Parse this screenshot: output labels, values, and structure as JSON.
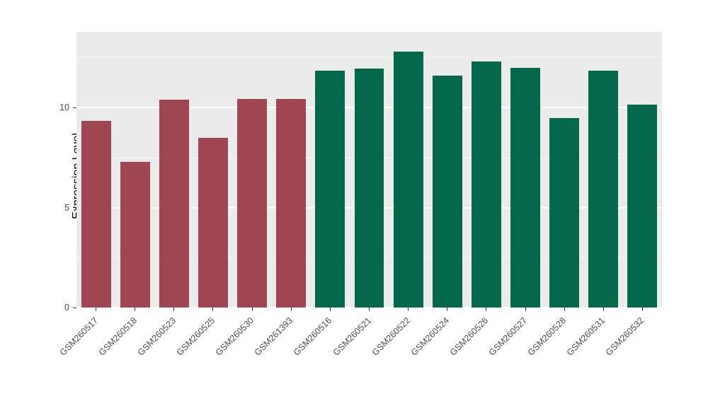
{
  "chart_data": {
    "type": "bar",
    "title": "",
    "xlabel": "",
    "ylabel": "Expression Level",
    "ylim": [
      0,
      13.8
    ],
    "yticks": [
      0,
      5,
      10
    ],
    "yticks_minor": [
      2.5,
      7.5,
      12.5
    ],
    "grid": true,
    "legend_position": "none",
    "panel_background": "#EBEBEB",
    "gridline_color": "#FFFFFF",
    "categories": [
      "GSM260517",
      "GSM260518",
      "GSM260523",
      "GSM260525",
      "GSM260530",
      "GSM261393",
      "GSM260516",
      "GSM260521",
      "GSM260522",
      "GSM260524",
      "GSM260526",
      "GSM260527",
      "GSM260528",
      "GSM260531",
      "GSM260532"
    ],
    "values": [
      9.35,
      7.3,
      10.4,
      8.5,
      10.45,
      10.45,
      11.85,
      11.95,
      12.8,
      11.6,
      12.3,
      12.0,
      9.5,
      11.85,
      10.15
    ],
    "bar_groups": [
      "group1",
      "group1",
      "group1",
      "group1",
      "group1",
      "group1",
      "group2",
      "group2",
      "group2",
      "group2",
      "group2",
      "group2",
      "group2",
      "group2",
      "group2"
    ],
    "group_colors": {
      "group1": "#A04552",
      "group2": "#04694B"
    }
  }
}
